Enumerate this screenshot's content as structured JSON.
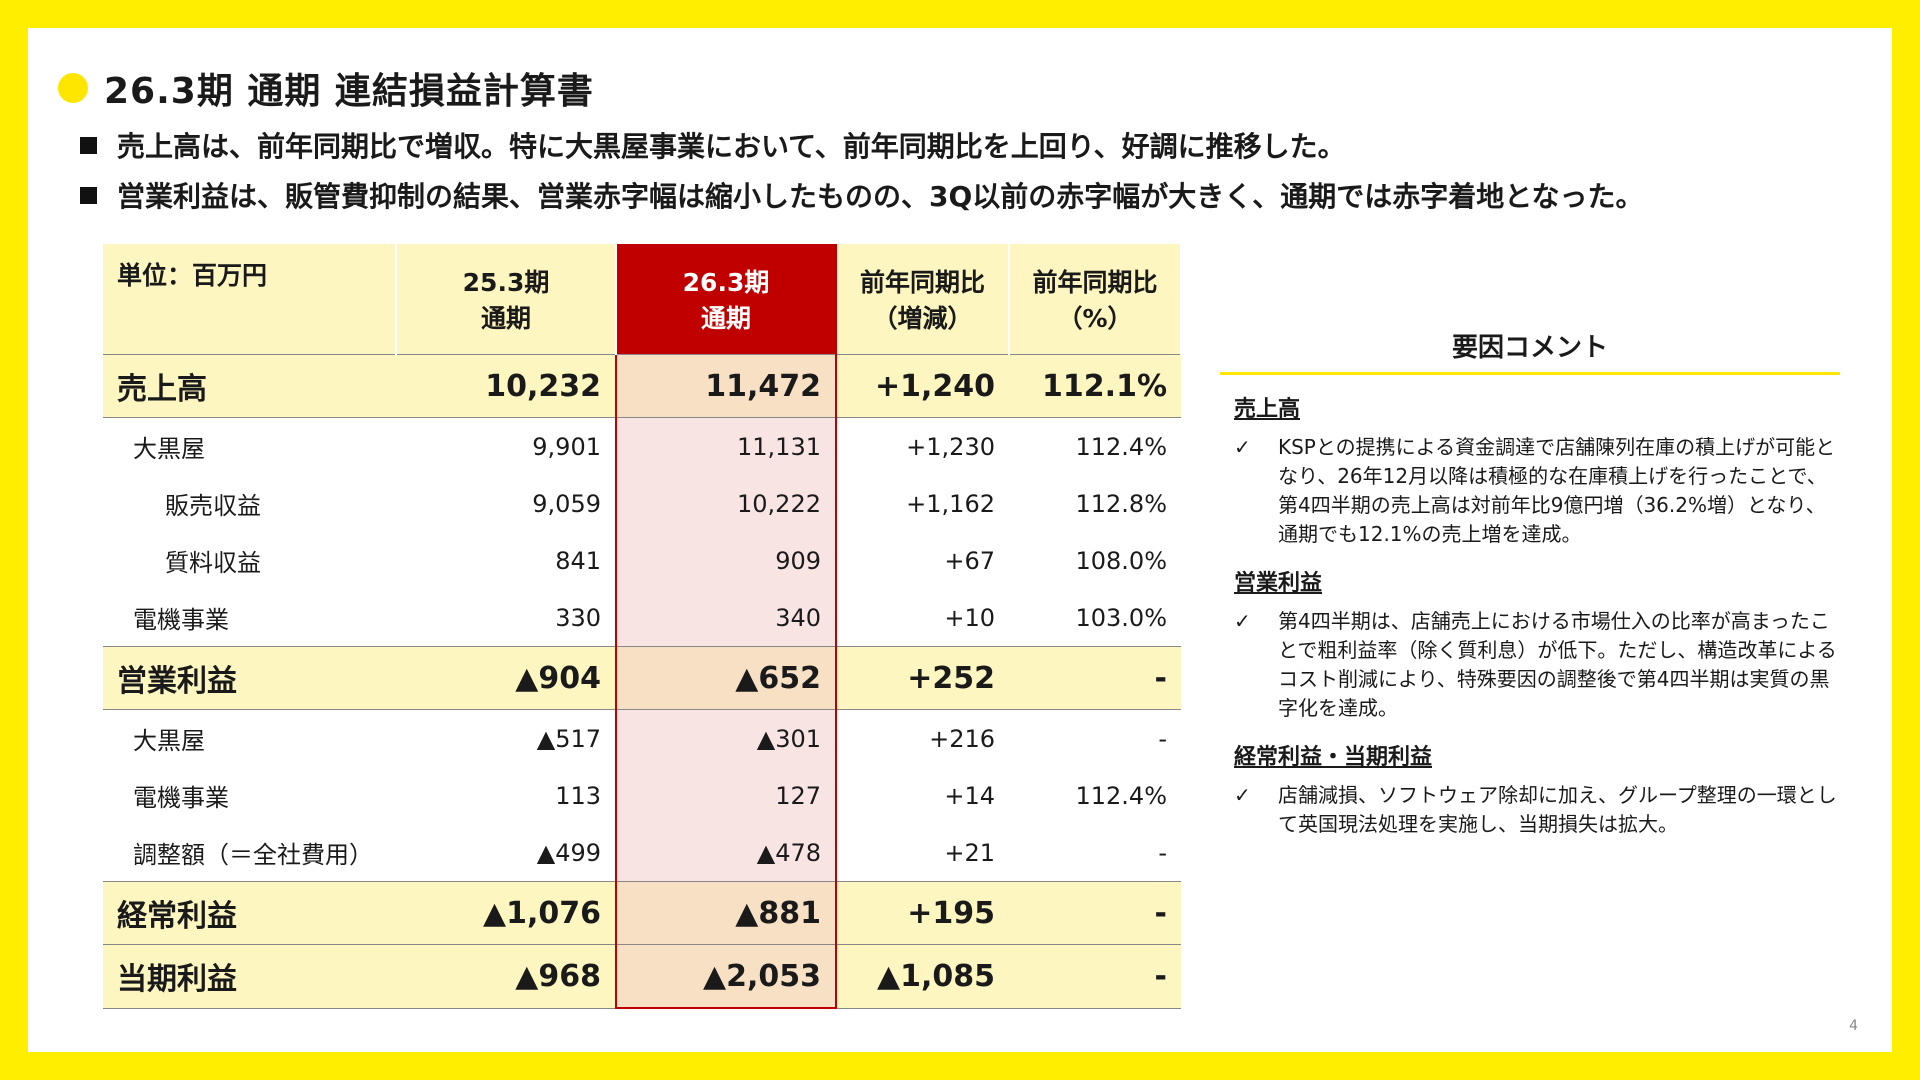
{
  "title": "26.3期 通期 連結損益計算書",
  "bullets": [
    "売上高は、前年同期比で増収。特に大黒屋事業において、前年同期比を上回り、好調に推移した。",
    "営業利益は、販管費抑制の結果、営業赤字幅は縮小したものの、3Q以前の赤字幅が大きく、通期では赤字着地となった。"
  ],
  "table": {
    "unit_label": "単位：百万円",
    "col_prev": [
      "25.3期",
      "通期"
    ],
    "col_curr": [
      "26.3期",
      "通期"
    ],
    "col_diff": [
      "前年同期比",
      "（増減）"
    ],
    "col_pct": [
      "前年同期比",
      "（%）"
    ],
    "rows": [
      {
        "label": "売上高",
        "prev": "10,232",
        "curr": "11,472",
        "diff": "+1,240",
        "pct": "112.1%"
      },
      {
        "label": "大黒屋",
        "prev": "9,901",
        "curr": "11,131",
        "diff": "+1,230",
        "pct": "112.4%"
      },
      {
        "label": "販売収益",
        "prev": "9,059",
        "curr": "10,222",
        "diff": "+1,162",
        "pct": "112.8%"
      },
      {
        "label": "質料収益",
        "prev": "841",
        "curr": "909",
        "diff": "+67",
        "pct": "108.0%"
      },
      {
        "label": "電機事業",
        "prev": "330",
        "curr": "340",
        "diff": "+10",
        "pct": "103.0%"
      },
      {
        "label": "営業利益",
        "prev": "▲904",
        "curr": "▲652",
        "diff": "+252",
        "pct": "-"
      },
      {
        "label": "大黒屋",
        "prev": "▲517",
        "curr": "▲301",
        "diff": "+216",
        "pct": "-"
      },
      {
        "label": "電機事業",
        "prev": "113",
        "curr": "127",
        "diff": "+14",
        "pct": "112.4%"
      },
      {
        "label": "調整額（＝全社費用）",
        "prev": "▲499",
        "curr": "▲478",
        "diff": "+21",
        "pct": "-"
      },
      {
        "label": "経常利益",
        "prev": "▲1,076",
        "curr": "▲881",
        "diff": "+195",
        "pct": "-"
      },
      {
        "label": "当期利益",
        "prev": "▲968",
        "curr": "▲2,053",
        "diff": "▲1,085",
        "pct": "-"
      }
    ]
  },
  "comments": {
    "title": "要因コメント",
    "check_mark": "✓",
    "sections": [
      {
        "heading": "売上高",
        "text": "KSPとの提携による資金調達で店舗陳列在庫の積上げが可能となり、26年12月以降は積極的な在庫積上げを行ったことで、第4四半期の売上高は対前年比9億円増（36.2%増）となり、通期でも12.1%の売上増を達成。"
      },
      {
        "heading": "営業利益",
        "text": "第4四半期は、店舗売上における市場仕入の比率が高まったことで粗利益率（除く質利息）が低下。ただし、構造改革によるコスト削減により、特殊要因の調整後で第4四半期は実質の黒字化を達成。"
      },
      {
        "heading": "経常利益・当期利益",
        "text": "店舗減損、ソフトウェア除却に加え、グループ整理の一環として英国現法処理を実施し、当期損失は拡大。"
      }
    ]
  },
  "page_number": "4",
  "colors": {
    "frame": "#FFEE00",
    "accent_red": "#C00000",
    "header_bg": "#FDF6C0"
  }
}
